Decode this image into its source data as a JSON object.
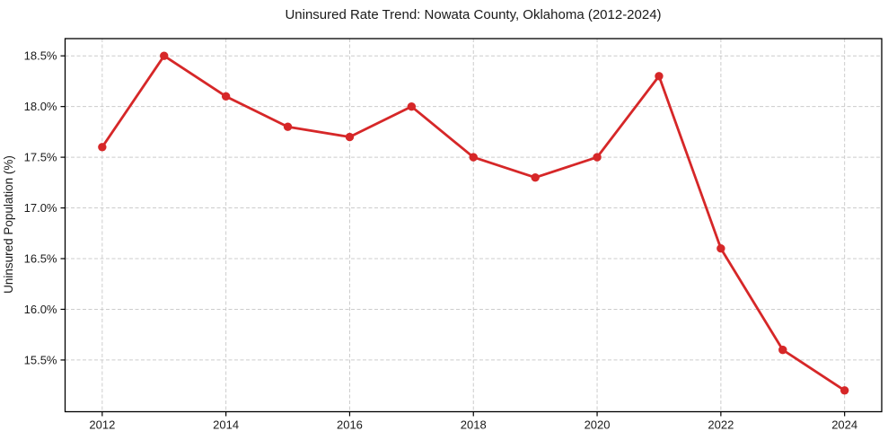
{
  "chart_data": {
    "type": "line",
    "title": "Uninsured Rate Trend: Nowata County, Oklahoma (2012-2024)",
    "xlabel": "",
    "ylabel": "Uninsured Population (%)",
    "x": [
      2012,
      2013,
      2014,
      2015,
      2016,
      2017,
      2018,
      2019,
      2020,
      2021,
      2022,
      2023,
      2024
    ],
    "series": [
      {
        "name": "Uninsured Rate",
        "values": [
          17.6,
          18.5,
          18.1,
          17.8,
          17.7,
          18.0,
          17.5,
          17.3,
          17.5,
          18.3,
          16.6,
          15.6,
          15.2
        ]
      }
    ],
    "xlim": [
      2011.4,
      2024.6
    ],
    "ylim": [
      14.99,
      18.67
    ],
    "x_ticks": [
      2012,
      2014,
      2016,
      2018,
      2020,
      2022,
      2024
    ],
    "x_tick_labels": [
      "2012",
      "2014",
      "2016",
      "2018",
      "2020",
      "2022",
      "2024"
    ],
    "y_ticks": [
      15.5,
      16.0,
      16.5,
      17.0,
      17.5,
      18.0,
      18.5
    ],
    "y_tick_labels": [
      "15.5%",
      "16.0%",
      "16.5%",
      "17.0%",
      "17.5%",
      "18.0%",
      "18.5%"
    ],
    "grid": true,
    "grid_style": "dashed",
    "legend_position": "none",
    "line_color": "#d62728",
    "marker": "circle",
    "grid_color": "#cccccc",
    "frame_color": "#000000",
    "tick_color": "#000000",
    "text_color": "#1a1a1a",
    "background_color": "#ffffff"
  }
}
